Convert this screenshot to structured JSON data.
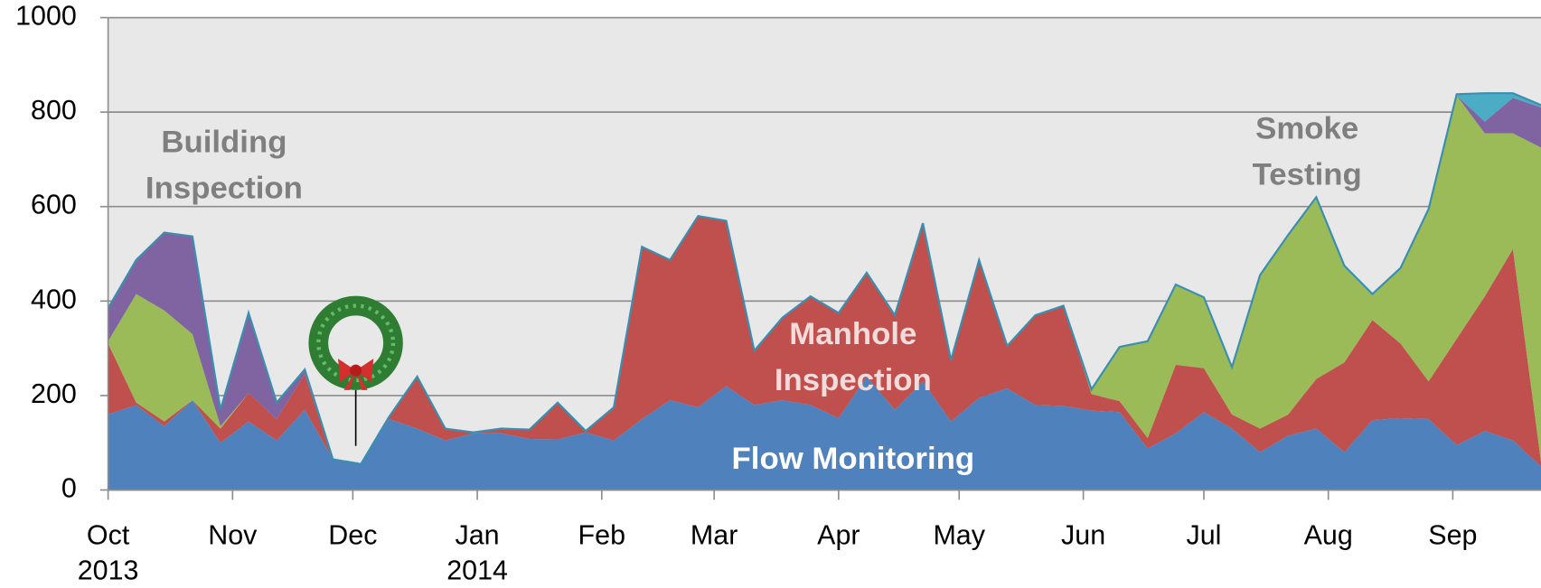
{
  "chart_data": {
    "type": "area",
    "stacked": true,
    "x": [
      0,
      1,
      2,
      3,
      4,
      5,
      6,
      7,
      8,
      9,
      10,
      11,
      12,
      13,
      14,
      15,
      16,
      17,
      18,
      19,
      20,
      21,
      22,
      23,
      24,
      25,
      26,
      27,
      28,
      29,
      30,
      31,
      32,
      33,
      34,
      35,
      36,
      37,
      38,
      39,
      40,
      41,
      42,
      43,
      44,
      45,
      46,
      47,
      48,
      49,
      50,
      51
    ],
    "xlim": [
      0,
      51
    ],
    "xticks": [
      {
        "value": 0,
        "label": "Oct 2013"
      },
      {
        "value": 4.43,
        "label": "Nov"
      },
      {
        "value": 8.71,
        "label": "Dec"
      },
      {
        "value": 13.14,
        "label": "Jan 2014"
      },
      {
        "value": 17.57,
        "label": "Feb"
      },
      {
        "value": 21.57,
        "label": "Mar"
      },
      {
        "value": 26,
        "label": "Apr"
      },
      {
        "value": 30.29,
        "label": "May"
      },
      {
        "value": 34.71,
        "label": "Jun"
      },
      {
        "value": 39,
        "label": "Jul"
      },
      {
        "value": 43.43,
        "label": "Aug"
      },
      {
        "value": 47.86,
        "label": "Sep"
      }
    ],
    "ylim": [
      0,
      1000
    ],
    "yticks": [
      0,
      200,
      400,
      600,
      800,
      1000
    ],
    "grid": true,
    "series": [
      {
        "name": "Flow Monitoring",
        "color": "#4f81bd",
        "label_color": "#ffffff",
        "values": [
          160,
          180,
          135,
          190,
          100,
          145,
          105,
          170,
          65,
          55,
          150,
          130,
          105,
          120,
          120,
          108,
          107,
          122,
          105,
          150,
          190,
          175,
          220,
          180,
          190,
          180,
          152,
          240,
          170,
          230,
          145,
          195,
          215,
          180,
          178,
          168,
          165,
          88,
          120,
          165,
          130,
          80,
          115,
          130,
          80,
          148,
          152,
          150,
          95,
          125,
          105,
          50
        ]
      },
      {
        "name": "Manhole Inspection",
        "color": "#c0504d",
        "label_color": "#f2dcdb",
        "values": [
          150,
          5,
          10,
          0,
          30,
          60,
          45,
          75,
          0,
          0,
          5,
          110,
          25,
          2,
          10,
          20,
          78,
          3,
          70,
          365,
          297,
          405,
          350,
          115,
          175,
          230,
          223,
          220,
          200,
          335,
          130,
          292,
          90,
          190,
          212,
          35,
          23,
          22,
          145,
          93,
          30,
          50,
          45,
          105,
          190,
          212,
          158,
          80,
          225,
          285,
          405,
          10
        ]
      },
      {
        "name": "Smoke Testing",
        "color": "#9bbb59",
        "label_color": "#7f7f7f",
        "values": [
          5,
          230,
          235,
          140,
          5,
          0,
          0,
          0,
          0,
          0,
          0,
          0,
          0,
          0,
          0,
          0,
          0,
          0,
          0,
          0,
          0,
          0,
          0,
          0,
          0,
          0,
          0,
          0,
          0,
          0,
          0,
          0,
          0,
          0,
          0,
          10,
          115,
          205,
          170,
          150,
          100,
          325,
          380,
          385,
          205,
          55,
          160,
          360,
          515,
          345,
          245,
          665
        ]
      },
      {
        "name": "Building Inspection",
        "color": "#8064a2",
        "label_color": "#7f7f7f",
        "values": [
          70,
          72,
          165,
          207,
          35,
          170,
          35,
          10,
          0,
          0,
          0,
          0,
          0,
          0,
          0,
          0,
          0,
          0,
          0,
          0,
          0,
          0,
          0,
          0,
          0,
          0,
          0,
          0,
          0,
          0,
          0,
          0,
          0,
          0,
          0,
          0,
          0,
          0,
          0,
          0,
          0,
          0,
          0,
          0,
          0,
          0,
          0,
          0,
          0,
          25,
          75,
          85
        ]
      },
      {
        "color": "#4bacc6",
        "values": [
          0,
          0,
          0,
          0,
          0,
          0,
          0,
          0,
          0,
          0,
          0,
          0,
          0,
          0,
          0,
          0,
          0,
          0,
          0,
          0,
          0,
          0,
          0,
          0,
          0,
          0,
          0,
          0,
          0,
          0,
          0,
          0,
          0,
          0,
          0,
          0,
          0,
          0,
          0,
          0,
          0,
          0,
          0,
          0,
          0,
          0,
          0,
          5,
          3,
          60,
          10,
          5
        ]
      }
    ]
  }
}
